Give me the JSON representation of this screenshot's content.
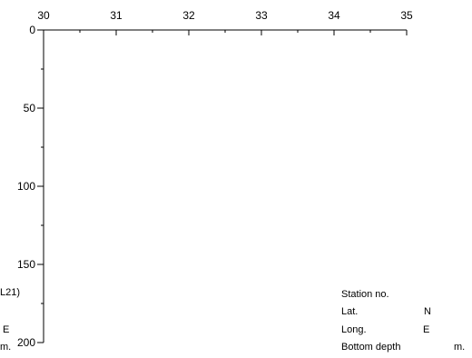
{
  "chart_data": {
    "type": "scatter",
    "x_axis": {
      "position": "top",
      "range": [
        30,
        35
      ],
      "ticks": [
        30,
        31,
        32,
        33,
        34,
        35
      ],
      "tick_labels": [
        "30",
        "31",
        "32",
        "33",
        "34",
        "35"
      ],
      "minor_step": 0.5
    },
    "y_axis": {
      "position": "left",
      "reversed": true,
      "range": [
        0,
        200
      ],
      "ticks": [
        0,
        50,
        100,
        150,
        200
      ],
      "tick_labels": [
        "0",
        "50",
        "100",
        "150",
        "200"
      ],
      "minor_step": 25
    },
    "series": [],
    "grid": false
  },
  "left_fragments": {
    "f1": "L21)",
    "f2": "E",
    "f3": "m."
  },
  "station_info": {
    "station_label": "Station no.",
    "lat_label": "Lat.",
    "lat_dir": "N",
    "long_label": "Long.",
    "long_dir": "E",
    "depth_label": "Bottom depth",
    "depth_unit": "m."
  }
}
